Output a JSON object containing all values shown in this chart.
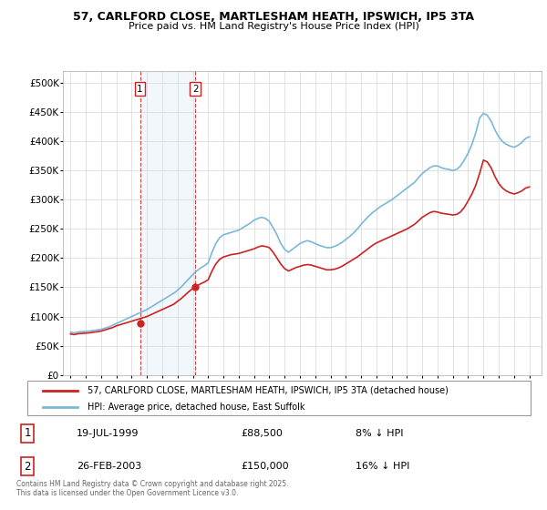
{
  "title1": "57, CARLFORD CLOSE, MARTLESHAM HEATH, IPSWICH, IP5 3TA",
  "title2": "Price paid vs. HM Land Registry's House Price Index (HPI)",
  "legend1": "57, CARLFORD CLOSE, MARTLESHAM HEATH, IPSWICH, IP5 3TA (detached house)",
  "legend2": "HPI: Average price, detached house, East Suffolk",
  "footer": "Contains HM Land Registry data © Crown copyright and database right 2025.\nThis data is licensed under the Open Government Licence v3.0.",
  "sale1_label": "1",
  "sale1_date": "19-JUL-1999",
  "sale1_price": "£88,500",
  "sale1_hpi": "8% ↓ HPI",
  "sale2_label": "2",
  "sale2_date": "26-FEB-2003",
  "sale2_price": "£150,000",
  "sale2_hpi": "16% ↓ HPI",
  "hpi_color": "#7ab8d9",
  "price_color": "#cc2222",
  "vline_color": "#cc3333",
  "vspan_color": "#cce0f0",
  "ylim": [
    0,
    520000
  ],
  "yticks": [
    0,
    50000,
    100000,
    150000,
    200000,
    250000,
    300000,
    350000,
    400000,
    450000,
    500000
  ],
  "xlim": [
    1994.5,
    2025.8
  ],
  "sale1_x": 1999.54,
  "sale1_y": 88500,
  "sale2_x": 2003.15,
  "sale2_y": 150000,
  "hpi_x": [
    1995.0,
    1995.25,
    1995.5,
    1995.75,
    1996.0,
    1996.25,
    1996.5,
    1996.75,
    1997.0,
    1997.25,
    1997.5,
    1997.75,
    1998.0,
    1998.25,
    1998.5,
    1998.75,
    1999.0,
    1999.25,
    1999.5,
    1999.75,
    2000.0,
    2000.25,
    2000.5,
    2000.75,
    2001.0,
    2001.25,
    2001.5,
    2001.75,
    2002.0,
    2002.25,
    2002.5,
    2002.75,
    2003.0,
    2003.25,
    2003.5,
    2003.75,
    2004.0,
    2004.25,
    2004.5,
    2004.75,
    2005.0,
    2005.25,
    2005.5,
    2005.75,
    2006.0,
    2006.25,
    2006.5,
    2006.75,
    2007.0,
    2007.25,
    2007.5,
    2007.75,
    2008.0,
    2008.25,
    2008.5,
    2008.75,
    2009.0,
    2009.25,
    2009.5,
    2009.75,
    2010.0,
    2010.25,
    2010.5,
    2010.75,
    2011.0,
    2011.25,
    2011.5,
    2011.75,
    2012.0,
    2012.25,
    2012.5,
    2012.75,
    2013.0,
    2013.25,
    2013.5,
    2013.75,
    2014.0,
    2014.25,
    2014.5,
    2014.75,
    2015.0,
    2015.25,
    2015.5,
    2015.75,
    2016.0,
    2016.25,
    2016.5,
    2016.75,
    2017.0,
    2017.25,
    2017.5,
    2017.75,
    2018.0,
    2018.25,
    2018.5,
    2018.75,
    2019.0,
    2019.25,
    2019.5,
    2019.75,
    2020.0,
    2020.25,
    2020.5,
    2020.75,
    2021.0,
    2021.25,
    2021.5,
    2021.75,
    2022.0,
    2022.25,
    2022.5,
    2022.75,
    2023.0,
    2023.25,
    2023.5,
    2023.75,
    2024.0,
    2024.25,
    2024.5,
    2024.75,
    2025.0
  ],
  "hpi_y": [
    73000,
    72000,
    73500,
    74000,
    74500,
    75000,
    76000,
    77000,
    78000,
    80000,
    82000,
    85000,
    88000,
    91000,
    94000,
    97000,
    100000,
    103000,
    106000,
    109000,
    112000,
    116000,
    120000,
    124000,
    128000,
    132000,
    136000,
    140000,
    145000,
    151000,
    158000,
    165000,
    172000,
    178000,
    183000,
    187000,
    192000,
    210000,
    225000,
    235000,
    240000,
    242000,
    244000,
    246000,
    248000,
    252000,
    256000,
    260000,
    265000,
    268000,
    270000,
    268000,
    263000,
    252000,
    240000,
    225000,
    215000,
    210000,
    215000,
    220000,
    225000,
    228000,
    230000,
    228000,
    225000,
    222000,
    220000,
    218000,
    218000,
    220000,
    223000,
    227000,
    232000,
    237000,
    243000,
    250000,
    258000,
    265000,
    272000,
    278000,
    283000,
    288000,
    292000,
    296000,
    300000,
    305000,
    310000,
    315000,
    320000,
    325000,
    330000,
    338000,
    345000,
    350000,
    355000,
    358000,
    358000,
    355000,
    353000,
    352000,
    350000,
    352000,
    358000,
    368000,
    380000,
    395000,
    415000,
    440000,
    448000,
    445000,
    435000,
    420000,
    408000,
    400000,
    395000,
    392000,
    390000,
    393000,
    398000,
    405000,
    408000
  ],
  "price_y": [
    70000,
    69000,
    70500,
    71000,
    71500,
    72000,
    73000,
    74000,
    75000,
    77000,
    79000,
    81000,
    84000,
    86000,
    88000,
    90000,
    92000,
    94000,
    96000,
    98000,
    100000,
    103000,
    106000,
    109000,
    112000,
    115000,
    118000,
    121000,
    126000,
    131000,
    137000,
    143000,
    148000,
    152000,
    156000,
    159000,
    163000,
    178000,
    190000,
    198000,
    202000,
    204000,
    206000,
    207000,
    208000,
    210000,
    212000,
    214000,
    216000,
    219000,
    221000,
    220000,
    218000,
    210000,
    200000,
    190000,
    182000,
    178000,
    181000,
    184000,
    186000,
    188000,
    189000,
    188000,
    186000,
    184000,
    182000,
    180000,
    180000,
    181000,
    183000,
    186000,
    190000,
    194000,
    198000,
    202000,
    207000,
    212000,
    217000,
    222000,
    226000,
    229000,
    232000,
    235000,
    238000,
    241000,
    244000,
    247000,
    250000,
    254000,
    258000,
    264000,
    270000,
    274000,
    278000,
    280000,
    279000,
    277000,
    276000,
    275000,
    274000,
    275000,
    279000,
    287000,
    298000,
    310000,
    325000,
    345000,
    368000,
    365000,
    355000,
    340000,
    328000,
    320000,
    315000,
    312000,
    310000,
    312000,
    315000,
    320000,
    322000
  ]
}
